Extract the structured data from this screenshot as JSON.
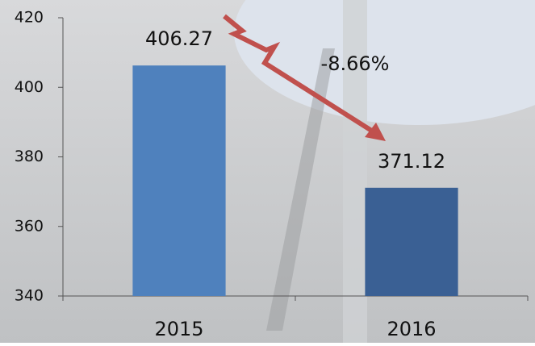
{
  "chart_data": {
    "type": "bar",
    "categories": [
      "2015",
      "2016"
    ],
    "values": [
      406.27,
      371.12
    ],
    "colors": [
      "#4f81bd",
      "#3a6094"
    ],
    "ylim": [
      340,
      420
    ],
    "yticks": [
      340,
      360,
      380,
      400,
      420
    ],
    "annotation": "-8.66%"
  }
}
